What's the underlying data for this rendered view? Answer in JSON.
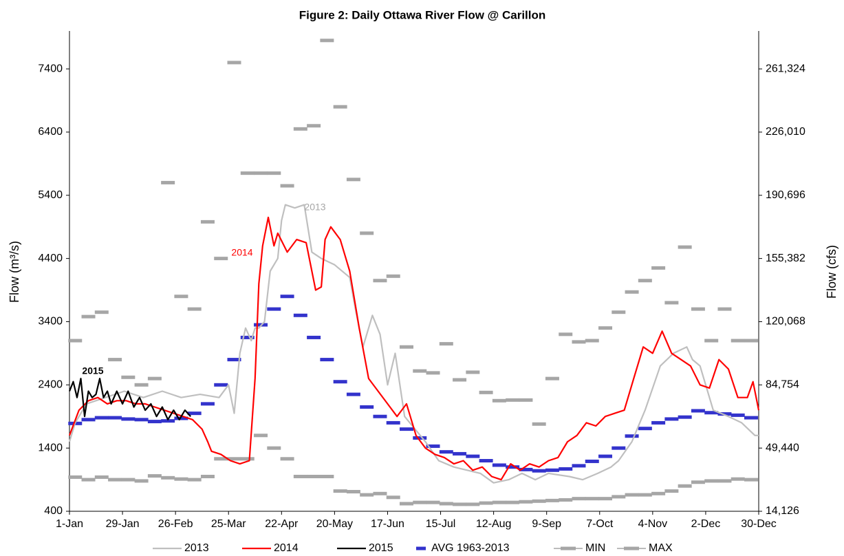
{
  "chart_data": {
    "type": "line",
    "title": "Figure 2:  Daily Ottawa River Flow @ Carillon",
    "y_label": "Flow (m³/s)",
    "y2_label": "Flow (cfs)",
    "xlim": [
      1,
      365
    ],
    "xticks": [
      {
        "value": 1,
        "label": "1-Jan"
      },
      {
        "value": 29,
        "label": "29-Jan"
      },
      {
        "value": 57,
        "label": "26-Feb"
      },
      {
        "value": 85,
        "label": "25-Mar"
      },
      {
        "value": 113,
        "label": "22-Apr"
      },
      {
        "value": 141,
        "label": "20-May"
      },
      {
        "value": 169,
        "label": "17-Jun"
      },
      {
        "value": 197,
        "label": "15-Jul"
      },
      {
        "value": 225,
        "label": "12-Aug"
      },
      {
        "value": 253,
        "label": "9-Sep"
      },
      {
        "value": 281,
        "label": "7-Oct"
      },
      {
        "value": 309,
        "label": "4-Nov"
      },
      {
        "value": 337,
        "label": "2-Dec"
      },
      {
        "value": 365,
        "label": "30-Dec"
      }
    ],
    "ylim": [
      400,
      8000
    ],
    "yticks": [
      400,
      1400,
      2400,
      3400,
      4400,
      5400,
      6400,
      7400
    ],
    "y2lim": [
      14126,
      282518
    ],
    "y2ticks": [
      {
        "value": 14126,
        "label": "14,126"
      },
      {
        "value": 49440,
        "label": "49,440"
      },
      {
        "value": 84754,
        "label": "84,754"
      },
      {
        "value": 120068,
        "label": "120,068"
      },
      {
        "value": 155382,
        "label": "155,382"
      },
      {
        "value": 190696,
        "label": "190,696"
      },
      {
        "value": 226010,
        "label": "226,010"
      },
      {
        "value": 261324,
        "label": "261,324"
      }
    ],
    "grid": false,
    "legend": "bottom",
    "series": [
      {
        "name": "2013",
        "color": "#bfbfbf",
        "mark": "line",
        "x": [
          1,
          4,
          10,
          20,
          30,
          40,
          50,
          60,
          70,
          80,
          85,
          88,
          91,
          94,
          97,
          99,
          101,
          104,
          107,
          111,
          113,
          115,
          120,
          125,
          129,
          134,
          141,
          149,
          152,
          156,
          161,
          165,
          169,
          173,
          178,
          189,
          196,
          204,
          218,
          225,
          233,
          240,
          247,
          254,
          265,
          272,
          280,
          287,
          291,
          298,
          305,
          313,
          320,
          327,
          330,
          334,
          341,
          349,
          356,
          363,
          365
        ],
        "values": [
          1500,
          1800,
          2100,
          2200,
          2300,
          2200,
          2300,
          2200,
          2250,
          2200,
          2400,
          1950,
          2900,
          3300,
          3100,
          3300,
          3300,
          3400,
          4200,
          4400,
          5000,
          5250,
          5200,
          5250,
          4500,
          4400,
          4300,
          4100,
          3600,
          3000,
          3500,
          3200,
          2400,
          2900,
          1900,
          1500,
          1200,
          1100,
          1000,
          850,
          900,
          1000,
          900,
          1000,
          950,
          900,
          1000,
          1100,
          1200,
          1500,
          2000,
          2700,
          2900,
          3000,
          2800,
          2700,
          2000,
          1900,
          1800,
          1600,
          1600
        ]
      },
      {
        "name": "2014",
        "color": "#ff0000",
        "mark": "line",
        "x": [
          1,
          6,
          11,
          16,
          21,
          26,
          31,
          36,
          41,
          46,
          51,
          56,
          61,
          66,
          71,
          74,
          76,
          81,
          86,
          91,
          96,
          99,
          101,
          103,
          106,
          109,
          111,
          116,
          121,
          126,
          131,
          134,
          136,
          139,
          144,
          149,
          154,
          159,
          164,
          169,
          174,
          179,
          184,
          189,
          194,
          199,
          204,
          209,
          214,
          219,
          224,
          229,
          234,
          239,
          244,
          249,
          254,
          259,
          264,
          269,
          274,
          279,
          284,
          289,
          294,
          299,
          304,
          309,
          314,
          319,
          324,
          329,
          334,
          339,
          344,
          349,
          354,
          359,
          362,
          365
        ],
        "values": [
          1600,
          2000,
          2150,
          2200,
          2100,
          2150,
          2150,
          2100,
          2100,
          2050,
          2000,
          1950,
          1900,
          1850,
          1700,
          1500,
          1350,
          1300,
          1200,
          1150,
          1200,
          2500,
          4000,
          4600,
          5050,
          4600,
          4800,
          4500,
          4700,
          4650,
          3900,
          3950,
          4700,
          4900,
          4700,
          4200,
          3300,
          2500,
          2300,
          2100,
          1900,
          2100,
          1600,
          1400,
          1300,
          1250,
          1150,
          1200,
          1050,
          1100,
          950,
          900,
          1150,
          1050,
          1150,
          1100,
          1200,
          1250,
          1500,
          1600,
          1800,
          1750,
          1900,
          1950,
          2000,
          2500,
          3000,
          2900,
          3250,
          2900,
          2800,
          2700,
          2400,
          2350,
          2800,
          2650,
          2200,
          2200,
          2450,
          2000
        ]
      },
      {
        "name": "2015",
        "color": "#000000",
        "mark": "line",
        "x": [
          1,
          3,
          5,
          7,
          9,
          11,
          13,
          15,
          17,
          19,
          21,
          23,
          26,
          29,
          32,
          35,
          38,
          41,
          44,
          47,
          50,
          53,
          56,
          59,
          62,
          65
        ],
        "values": [
          2300,
          2450,
          2200,
          2500,
          1900,
          2300,
          2200,
          2250,
          2500,
          2200,
          2300,
          2100,
          2300,
          2100,
          2300,
          2050,
          2200,
          2000,
          2100,
          1900,
          2050,
          1850,
          2000,
          1850,
          2000,
          1900
        ]
      },
      {
        "name": "AVG 1963-2013",
        "color": "#3333cc",
        "mark": "dash",
        "x": [
          4,
          11,
          18,
          25,
          32,
          39,
          46,
          53,
          60,
          67,
          74,
          81,
          88,
          95,
          102,
          109,
          116,
          123,
          130,
          137,
          144,
          151,
          158,
          165,
          172,
          179,
          186,
          193,
          200,
          207,
          214,
          221,
          228,
          235,
          242,
          249,
          256,
          263,
          270,
          277,
          284,
          291,
          298,
          305,
          312,
          319,
          326,
          333,
          340,
          347,
          354,
          361
        ],
        "values": [
          1790,
          1850,
          1880,
          1880,
          1860,
          1850,
          1820,
          1830,
          1870,
          1950,
          2100,
          2400,
          2800,
          3150,
          3350,
          3600,
          3800,
          3500,
          3150,
          2800,
          2450,
          2250,
          2050,
          1900,
          1800,
          1700,
          1560,
          1430,
          1340,
          1310,
          1270,
          1200,
          1130,
          1100,
          1060,
          1040,
          1050,
          1070,
          1120,
          1190,
          1270,
          1400,
          1590,
          1710,
          1800,
          1860,
          1890,
          1990,
          1960,
          1940,
          1920,
          1880
        ]
      },
      {
        "name": "MIN",
        "color": "#a6a6a6",
        "mark": "dash",
        "x": [
          4,
          11,
          18,
          25,
          32,
          39,
          46,
          53,
          60,
          67,
          74,
          81,
          88,
          95,
          102,
          109,
          116,
          123,
          130,
          137,
          144,
          151,
          158,
          165,
          172,
          179,
          186,
          193,
          200,
          207,
          214,
          221,
          228,
          235,
          242,
          249,
          256,
          263,
          270,
          277,
          284,
          291,
          298,
          305,
          312,
          319,
          326,
          333,
          340,
          347,
          354,
          361
        ],
        "values": [
          940,
          900,
          940,
          900,
          900,
          880,
          960,
          930,
          910,
          900,
          950,
          1230,
          1230,
          1230,
          1600,
          1400,
          1230,
          950,
          950,
          950,
          720,
          710,
          660,
          680,
          620,
          520,
          540,
          540,
          520,
          510,
          510,
          530,
          540,
          540,
          550,
          560,
          570,
          580,
          600,
          600,
          600,
          630,
          660,
          660,
          680,
          720,
          800,
          860,
          880,
          880,
          910,
          900
        ]
      },
      {
        "name": "MAX",
        "color": "#a6a6a6",
        "mark": "dash",
        "x": [
          4,
          11,
          18,
          25,
          32,
          39,
          46,
          53,
          60,
          67,
          74,
          81,
          88,
          95,
          102,
          109,
          116,
          123,
          130,
          137,
          144,
          151,
          158,
          165,
          172,
          179,
          186,
          193,
          200,
          207,
          214,
          221,
          228,
          235,
          242,
          249,
          256,
          263,
          270,
          277,
          284,
          291,
          298,
          305,
          312,
          319,
          326,
          333,
          340,
          347,
          354,
          361
        ],
        "values": [
          3100,
          3480,
          3550,
          2800,
          2520,
          2400,
          2500,
          5600,
          3800,
          3600,
          4980,
          4400,
          7500,
          5750,
          5750,
          5750,
          5550,
          6450,
          6500,
          7850,
          6800,
          5650,
          4800,
          4050,
          4120,
          3000,
          2620,
          2590,
          3050,
          2480,
          2600,
          2280,
          2150,
          2160,
          2160,
          1780,
          2500,
          3200,
          3080,
          3100,
          3300,
          3550,
          3870,
          4050,
          4250,
          3700,
          4580,
          3600,
          3100,
          3600,
          3100,
          3100
        ]
      }
    ],
    "annotations": [
      {
        "text": "2013",
        "color": "#a6a6a6"
      },
      {
        "text": "2014",
        "color": "#ff0000"
      },
      {
        "text": "2015",
        "color": "#000000"
      }
    ]
  }
}
